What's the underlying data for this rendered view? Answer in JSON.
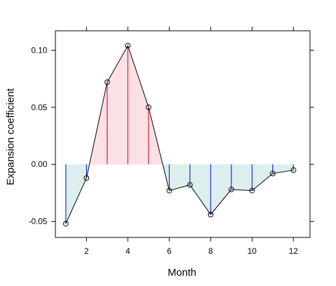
{
  "chart_data": {
    "type": "line",
    "title": "",
    "xlabel": "Month",
    "ylabel": "Expansion coefficient",
    "x": [
      1,
      2,
      3,
      4,
      5,
      6,
      7,
      8,
      9,
      10,
      11,
      12
    ],
    "y": [
      -0.052,
      -0.012,
      0.072,
      0.104,
      0.05,
      -0.023,
      -0.018,
      -0.044,
      -0.022,
      -0.023,
      -0.008,
      -0.005
    ],
    "xlim": [
      0.5,
      12.8
    ],
    "ylim": [
      -0.064,
      0.117
    ],
    "xticks": [
      "2",
      "4",
      "6",
      "8",
      "10",
      "12"
    ],
    "yticks": [
      "-0.05",
      "0.00",
      "0.05",
      "0.10"
    ],
    "xtick_values": [
      2,
      4,
      6,
      8,
      10,
      12
    ],
    "ytick_values": [
      -0.05,
      0.0,
      0.05,
      0.1
    ],
    "baseline": 0,
    "grid": false,
    "colors": {
      "positive_fill": "#fbe0e6",
      "negative_fill": "#dcefee",
      "positive_stem": "#cc0000",
      "negative_stem": "#0000cc",
      "line": "#000000",
      "axis": "#000000"
    }
  }
}
